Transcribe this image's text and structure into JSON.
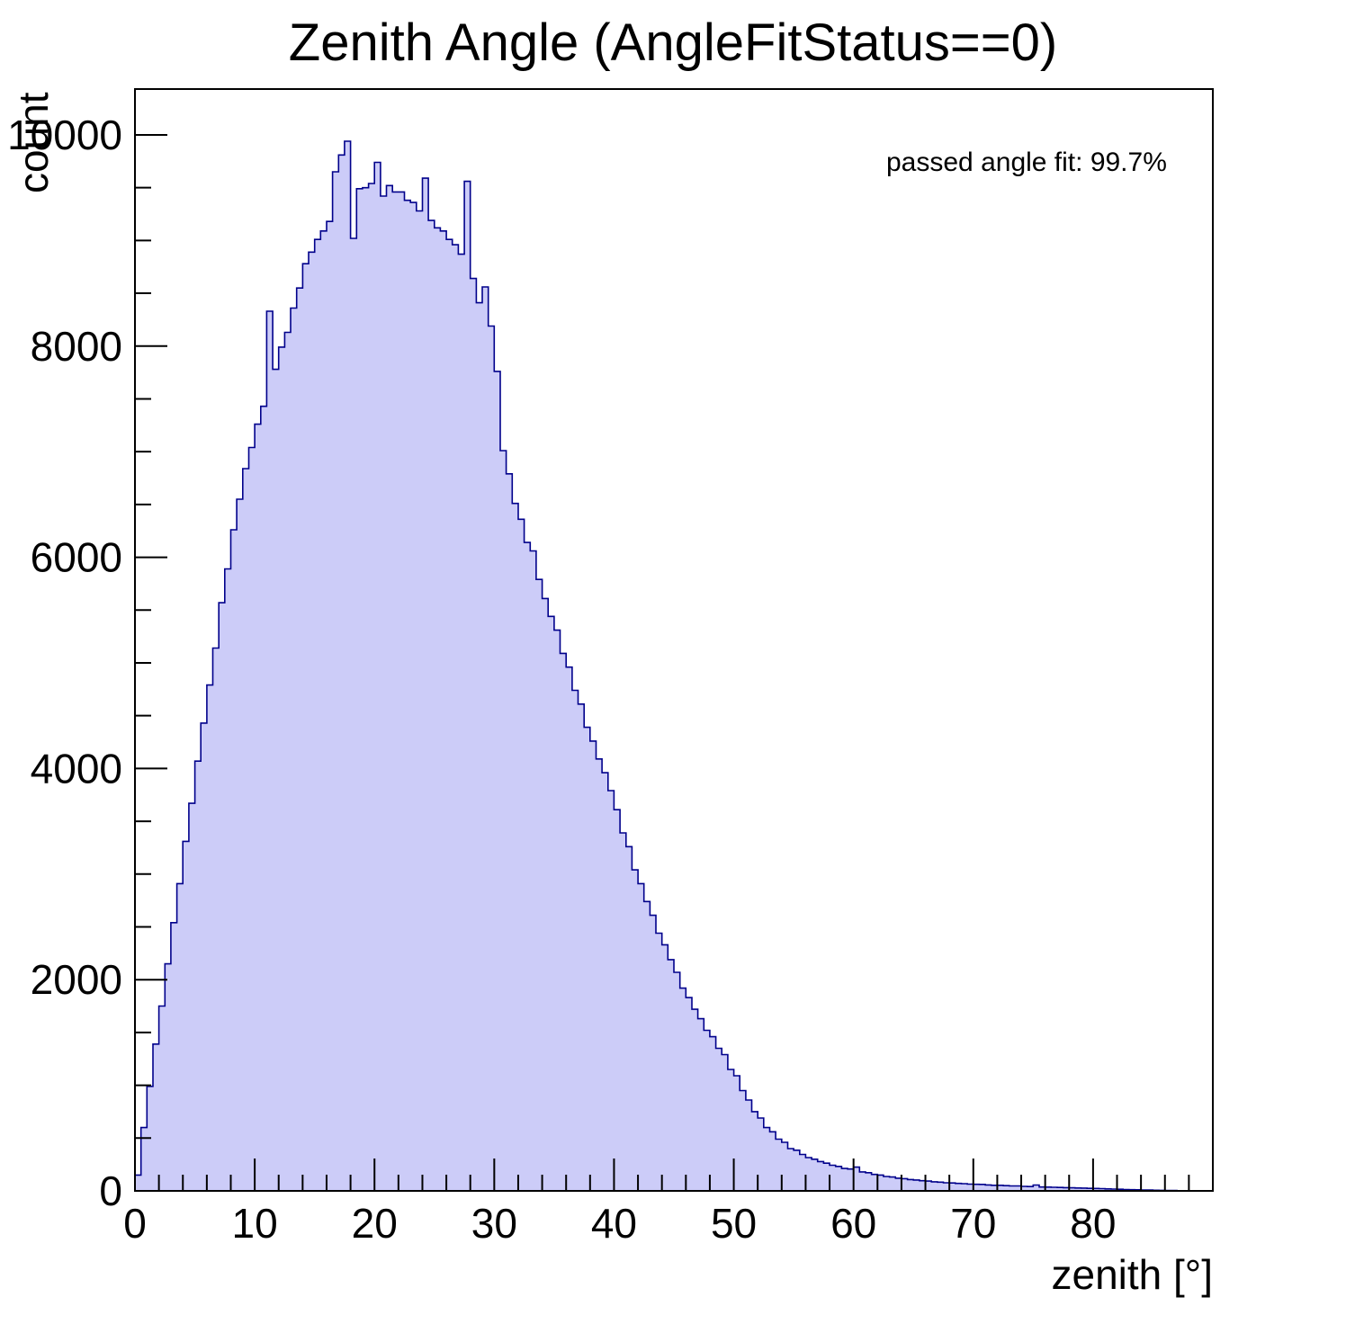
{
  "title": "Zenith Angle (AngleFitStatus==0)",
  "annotation": "passed angle fit: 99.7%",
  "chart_data": {
    "type": "bar",
    "subtype": "histogram-step-filled",
    "title": "Zenith Angle (AngleFitStatus==0)",
    "xlabel": "zenith [°]",
    "ylabel": "count",
    "annotation": "passed angle fit: 99.7%",
    "xlim": [
      0,
      90
    ],
    "ylim": [
      0,
      10434
    ],
    "bin_start": 0,
    "bin_width": 0.5,
    "x_major_ticks": [
      0,
      10,
      20,
      30,
      40,
      50,
      60,
      70,
      80
    ],
    "x_minor_step": 2,
    "y_major_ticks": [
      0,
      2000,
      4000,
      6000,
      8000,
      10000
    ],
    "y_minor_step": 500,
    "grid": false,
    "legend_position": "none",
    "colors": {
      "fill": "#ccccf8",
      "line": "#00008b",
      "frame": "#000000",
      "text": "#000000",
      "background": "#ffffff"
    },
    "values": [
      150,
      600,
      990,
      1390,
      1750,
      2150,
      2540,
      2910,
      3310,
      3670,
      4070,
      4430,
      4790,
      5140,
      5570,
      5890,
      6260,
      6550,
      6840,
      7040,
      7260,
      7430,
      8330,
      7780,
      7990,
      8130,
      8360,
      8550,
      8780,
      8890,
      9010,
      9090,
      9180,
      9650,
      9810,
      9940,
      9020,
      9490,
      9500,
      9540,
      9740,
      9420,
      9520,
      9460,
      9460,
      9380,
      9360,
      9280,
      9590,
      9190,
      9120,
      9090,
      9010,
      8960,
      8870,
      9560,
      8640,
      8410,
      8560,
      8190,
      7760,
      7010,
      6790,
      6510,
      6360,
      6140,
      6060,
      5790,
      5610,
      5440,
      5310,
      5090,
      4960,
      4740,
      4610,
      4390,
      4260,
      4090,
      3960,
      3790,
      3610,
      3390,
      3260,
      3040,
      2910,
      2740,
      2610,
      2440,
      2330,
      2190,
      2070,
      1920,
      1830,
      1720,
      1630,
      1520,
      1460,
      1350,
      1290,
      1150,
      1090,
      950,
      860,
      750,
      690,
      600,
      560,
      490,
      460,
      400,
      385,
      345,
      315,
      300,
      278,
      262,
      243,
      232,
      212,
      207,
      225,
      180,
      172,
      156,
      150,
      136,
      131,
      120,
      116,
      107,
      103,
      96,
      93,
      86,
      83,
      77,
      75,
      71,
      68,
      64,
      62,
      61,
      56,
      53,
      53,
      49,
      47,
      47,
      43,
      41,
      55,
      37,
      36,
      34,
      32,
      31,
      29,
      27,
      26,
      24,
      23,
      21,
      19,
      17,
      15,
      13,
      11,
      10,
      8,
      8,
      6,
      5,
      4,
      3,
      2,
      1,
      1,
      0,
      0,
      0
    ]
  }
}
